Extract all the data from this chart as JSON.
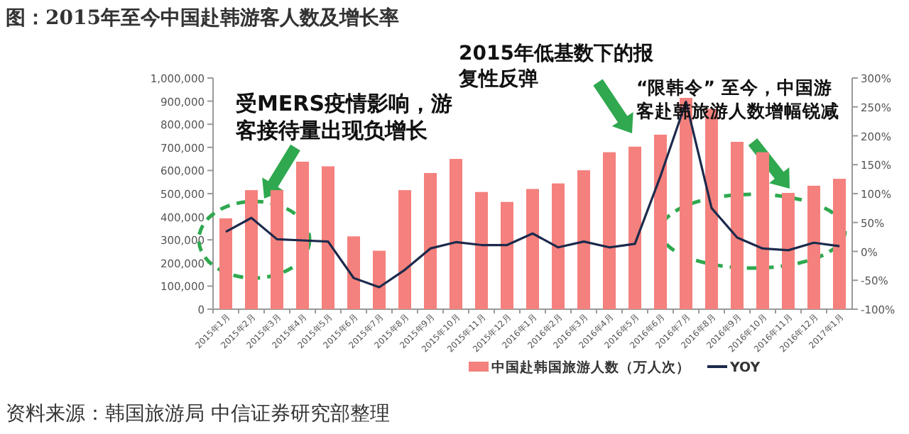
{
  "chart_data": {
    "type": "bar",
    "title": "图：2015年至今中国赴韩游客人数及增长率",
    "categories": [
      "2015年1月",
      "2015年2月",
      "2015年3月",
      "2015年4月",
      "2015年5月",
      "2015年6月",
      "2015年7月",
      "2015年8月",
      "2015年9月",
      "2015年10月",
      "2015年11月",
      "2015年12月",
      "2016年1月",
      "2016年2月",
      "2016年3月",
      "2016年4月",
      "2016年5月",
      "2016年6月",
      "2016年7月",
      "2016年8月",
      "2016年9月",
      "2016年10月",
      "2016年11月",
      "2016年12月",
      "2017年1月"
    ],
    "series": [
      {
        "name": "中国赴韩国旅游人数（万人次）",
        "color": "#f4817d",
        "values": [
          393000,
          515000,
          515000,
          638000,
          618000,
          315000,
          253000,
          515000,
          589000,
          650000,
          507000,
          464000,
          520000,
          544000,
          601000,
          679000,
          703000,
          755000,
          914000,
          867000,
          724000,
          679000,
          503000,
          534000,
          564000
        ]
      },
      {
        "name": "YOY",
        "type": "line",
        "axis": "y2",
        "color": "#1c2a4c",
        "values": [
          34,
          58,
          21,
          19,
          17,
          -46,
          -62,
          -32,
          5,
          16,
          11,
          11,
          31,
          7,
          17,
          7,
          13,
          130,
          259,
          75,
          24,
          5,
          2,
          15,
          9
        ]
      }
    ],
    "ylim": [
      0,
      1000000
    ],
    "yticks": [
      {
        "value": 0,
        "label": "0"
      },
      {
        "value": 100000,
        "label": "100,000"
      },
      {
        "value": 200000,
        "label": "200,000"
      },
      {
        "value": 300000,
        "label": "300,000"
      },
      {
        "value": 400000,
        "label": "400,000"
      },
      {
        "value": 500000,
        "label": "500,000"
      },
      {
        "value": 600000,
        "label": "600,000"
      },
      {
        "value": 700000,
        "label": "700,000"
      },
      {
        "value": 800000,
        "label": "800,000"
      },
      {
        "value": 900000,
        "label": "900,000"
      },
      {
        "value": 1000000,
        "label": "1,000,000"
      }
    ],
    "y2lim": [
      -100,
      300
    ],
    "y2ticks": [
      {
        "value": -100,
        "label": "-100%"
      },
      {
        "value": -50,
        "label": "-50%"
      },
      {
        "value": 0,
        "label": "0%"
      },
      {
        "value": 50,
        "label": "50%"
      },
      {
        "value": 100,
        "label": "100%"
      },
      {
        "value": 150,
        "label": "150%"
      },
      {
        "value": 200,
        "label": "200%"
      },
      {
        "value": 250,
        "label": "250%"
      },
      {
        "value": 300,
        "label": "300%"
      }
    ],
    "legend": "bottom",
    "annotations": [
      "受MERS疫情影响，游客接待量出现负增长",
      "2015年低基数下的报复性反弹",
      "“限韩令” 至今，中国游客赴韩旅游人数增幅锐减",
      "资料来源：韩国旅游局  中信证券研究部整理"
    ]
  }
}
